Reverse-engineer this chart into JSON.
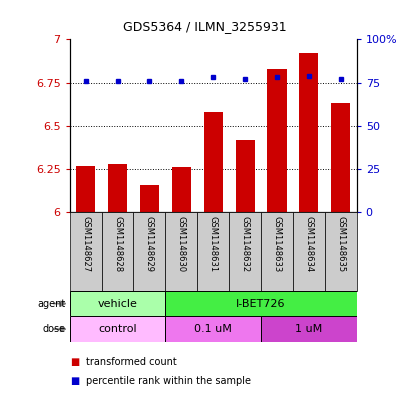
{
  "title": "GDS5364 / ILMN_3255931",
  "samples": [
    "GSM1148627",
    "GSM1148628",
    "GSM1148629",
    "GSM1148630",
    "GSM1148631",
    "GSM1148632",
    "GSM1148633",
    "GSM1148634",
    "GSM1148635"
  ],
  "bar_values": [
    6.27,
    6.28,
    6.16,
    6.26,
    6.58,
    6.42,
    6.83,
    6.92,
    6.63
  ],
  "bar_base": 6.0,
  "percentile_values": [
    76,
    76,
    76,
    76,
    78,
    77,
    78,
    79,
    77
  ],
  "ylim_left": [
    6.0,
    7.0
  ],
  "ylim_right": [
    0,
    100
  ],
  "yticks_left": [
    6.0,
    6.25,
    6.5,
    6.75,
    7.0
  ],
  "ytick_labels_left": [
    "6",
    "6.25",
    "6.5",
    "6.75",
    "7"
  ],
  "yticks_right": [
    0,
    25,
    50,
    75,
    100
  ],
  "ytick_labels_right": [
    "0",
    "25",
    "50",
    "75",
    "100%"
  ],
  "bar_color": "#cc0000",
  "dot_color": "#0000cc",
  "bar_width": 0.6,
  "grid_yticks": [
    6.25,
    6.5,
    6.75
  ],
  "agent_labels": [
    {
      "text": "vehicle",
      "start": 0,
      "end": 3,
      "color": "#aaffaa"
    },
    {
      "text": "I-BET726",
      "start": 3,
      "end": 9,
      "color": "#44ee44"
    }
  ],
  "dose_labels": [
    {
      "text": "control",
      "start": 0,
      "end": 3,
      "color": "#ffbbff"
    },
    {
      "text": "0.1 uM",
      "start": 3,
      "end": 6,
      "color": "#ee77ee"
    },
    {
      "text": "1 uM",
      "start": 6,
      "end": 9,
      "color": "#cc44cc"
    }
  ],
  "legend_bar_label": "transformed count",
  "legend_dot_label": "percentile rank within the sample",
  "sample_box_color": "#cccccc",
  "left_axis_color": "#cc0000",
  "right_axis_color": "#0000cc",
  "fig_width": 4.1,
  "fig_height": 3.93,
  "dpi": 100
}
